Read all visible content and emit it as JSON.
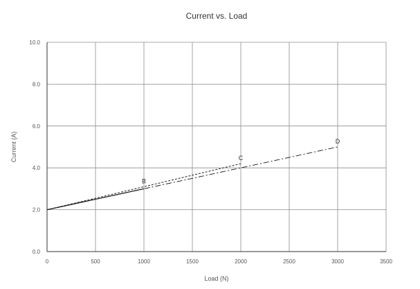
{
  "chart_data": {
    "type": "line",
    "title": "Current vs. Load",
    "xlabel": "Load (N)",
    "ylabel": "Current (A)",
    "xlim": [
      0,
      3500
    ],
    "ylim": [
      0,
      10
    ],
    "x_ticks": [
      0,
      500,
      1000,
      1500,
      2000,
      2500,
      3000,
      3500
    ],
    "y_ticks": [
      "0.0",
      "2.0",
      "4.0",
      "6.0",
      "8.0",
      "10.0"
    ],
    "grid": true,
    "series": [
      {
        "style": "solid",
        "color": "#222222",
        "points": [
          [
            0,
            2.0
          ],
          [
            1000,
            3.0
          ]
        ]
      },
      {
        "style": "dashed",
        "color": "#222222",
        "points": [
          [
            0,
            2.0
          ],
          [
            1000,
            3.1
          ],
          [
            2000,
            4.2
          ]
        ]
      },
      {
        "style": "dash-dot",
        "color": "#222222",
        "points": [
          [
            0,
            2.0
          ],
          [
            1000,
            3.0
          ],
          [
            2000,
            4.0
          ],
          [
            3000,
            5.0
          ]
        ]
      }
    ],
    "point_labels": [
      {
        "text": "B",
        "x": 1000,
        "y": 3.1
      },
      {
        "text": "C",
        "x": 2000,
        "y": 4.2
      },
      {
        "text": "D",
        "x": 3000,
        "y": 5.0
      }
    ]
  }
}
